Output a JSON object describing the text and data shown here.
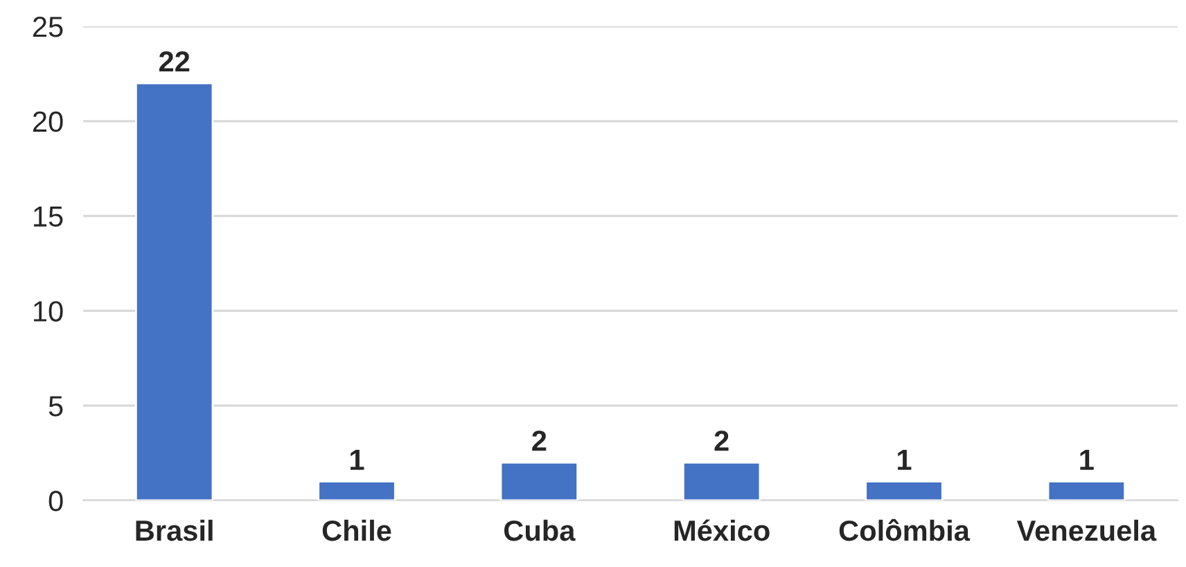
{
  "chart_data": {
    "type": "bar",
    "categories": [
      "Brasil",
      "Chile",
      "Cuba",
      "México",
      "Colômbia",
      "Venezuela"
    ],
    "values": [
      22,
      1,
      2,
      2,
      1,
      1
    ],
    "color": "#4472c4",
    "ylim": [
      0,
      25
    ],
    "yticks": [
      0,
      5,
      10,
      15,
      20,
      25
    ],
    "grid": "y",
    "data_labels": true
  }
}
